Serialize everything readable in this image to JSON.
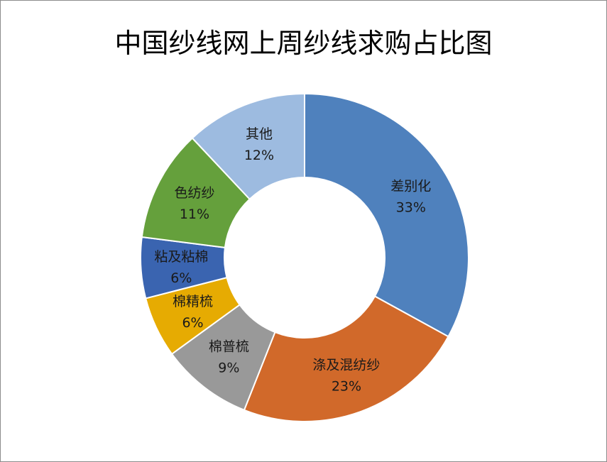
{
  "chart_data": {
    "type": "pie",
    "variant": "donut",
    "title": "中国纱线网上周纱线求购占比图",
    "slices": [
      {
        "label": "差别化",
        "value": 33,
        "value_label": "33%",
        "color": "#4f81bd"
      },
      {
        "label": "涤及混纺纱",
        "value": 23,
        "value_label": "23%",
        "color": "#d1692a"
      },
      {
        "label": "棉普梳",
        "value": 9,
        "value_label": "9%",
        "color": "#999999"
      },
      {
        "label": "棉精梳",
        "value": 6,
        "value_label": "6%",
        "color": "#e6ab02"
      },
      {
        "label": "粘及粘棉",
        "value": 6,
        "value_label": "6%",
        "color": "#3a64b0"
      },
      {
        "label": "色纺纱",
        "value": 11,
        "value_label": "11%",
        "color": "#65a03c"
      },
      {
        "label": "其他",
        "value": 12,
        "value_label": "12%",
        "color": "#9dbbe0"
      }
    ],
    "legend": "none",
    "data_labels": "category and percentage inside slices"
  }
}
